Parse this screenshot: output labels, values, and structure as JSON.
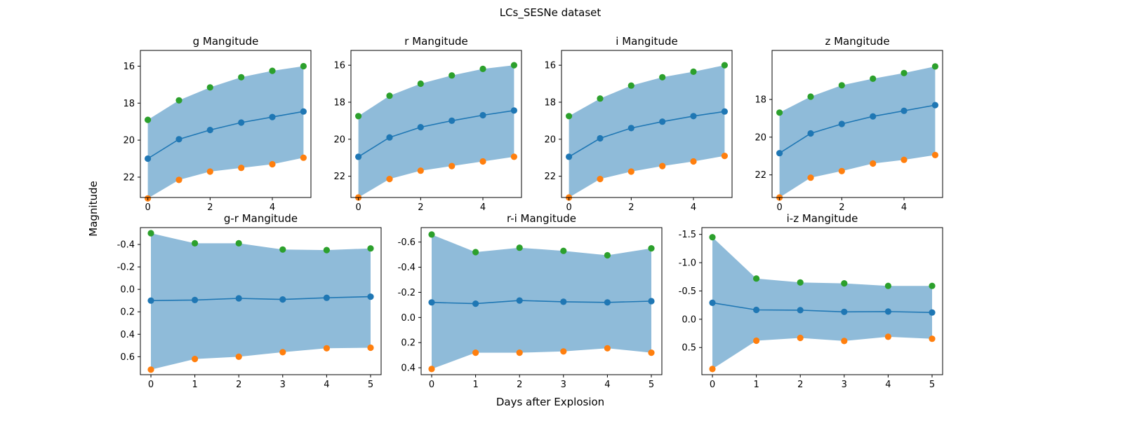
{
  "figure": {
    "title": "LCs_SESNe dataset",
    "xlabel": "Days after Explosion",
    "ylabel": "Magnitude"
  },
  "colors": {
    "band": "#1f77b4",
    "band_opacity": 0.5,
    "median": "#1f77b4",
    "upper": "#2ca02c",
    "lower": "#ff7f0e"
  },
  "chart_data": [
    {
      "type": "line",
      "title": "g Mangitude",
      "x": [
        0,
        1,
        2,
        3,
        4,
        5
      ],
      "xticks": [
        "0",
        "2",
        "4"
      ],
      "yticks": [
        "16",
        "18",
        "20",
        "22"
      ],
      "inverted_y": true,
      "ylim": [
        23.1,
        15.15
      ],
      "series": [
        {
          "values": [
            21.0,
            19.95,
            19.45,
            19.05,
            18.75,
            18.45
          ]
        },
        {
          "values": [
            23.15,
            22.15,
            21.7,
            21.5,
            21.3,
            20.95
          ]
        },
        {
          "values": [
            18.9,
            17.85,
            17.15,
            16.6,
            16.25,
            16.0
          ]
        }
      ]
    },
    {
      "type": "line",
      "title": "r Mangitude",
      "x": [
        0,
        1,
        2,
        3,
        4,
        5
      ],
      "xticks": [
        "0",
        "2",
        "4"
      ],
      "yticks": [
        "16",
        "18",
        "20",
        "22"
      ],
      "inverted_y": true,
      "ylim": [
        23.15,
        15.2
      ],
      "series": [
        {
          "values": [
            20.95,
            19.9,
            19.35,
            19.0,
            18.7,
            18.45
          ]
        },
        {
          "values": [
            23.15,
            22.15,
            21.7,
            21.45,
            21.2,
            20.95
          ]
        },
        {
          "values": [
            18.75,
            17.65,
            17.0,
            16.55,
            16.2,
            16.0
          ]
        }
      ]
    },
    {
      "type": "line",
      "title": "i Mangitude",
      "x": [
        0,
        1,
        2,
        3,
        4,
        5
      ],
      "xticks": [
        "0",
        "2",
        "4"
      ],
      "yticks": [
        "16",
        "18",
        "20",
        "22"
      ],
      "inverted_y": true,
      "ylim": [
        23.15,
        15.2
      ],
      "series": [
        {
          "values": [
            20.95,
            19.95,
            19.4,
            19.05,
            18.75,
            18.5
          ]
        },
        {
          "values": [
            23.15,
            22.15,
            21.75,
            21.45,
            21.2,
            20.9
          ]
        },
        {
          "values": [
            18.75,
            17.8,
            17.1,
            16.65,
            16.35,
            16.0
          ]
        }
      ]
    },
    {
      "type": "line",
      "title": "z Mangitude",
      "x": [
        0,
        1,
        2,
        3,
        4,
        5
      ],
      "xticks": [
        "0",
        "2",
        "4"
      ],
      "yticks": [
        "18",
        "20",
        "22"
      ],
      "inverted_y": true,
      "ylim": [
        23.2,
        15.4
      ],
      "series": [
        {
          "values": [
            20.85,
            19.8,
            19.3,
            18.9,
            18.6,
            18.3
          ]
        },
        {
          "values": [
            23.2,
            22.15,
            21.8,
            21.4,
            21.2,
            20.95
          ]
        },
        {
          "values": [
            18.7,
            17.85,
            17.25,
            16.9,
            16.6,
            16.25
          ]
        }
      ]
    },
    {
      "type": "line",
      "title": "g-r Mangitude",
      "x": [
        0,
        1,
        2,
        3,
        4,
        5
      ],
      "xticks": [
        "0",
        "1",
        "2",
        "3",
        "4",
        "5"
      ],
      "yticks": [
        "-0.4",
        "-0.2",
        "0.0",
        "0.2",
        "0.4",
        "0.6"
      ],
      "inverted_y": true,
      "ylim": [
        0.76,
        -0.55
      ],
      "series": [
        {
          "values": [
            0.1,
            0.095,
            0.08,
            0.09,
            0.075,
            0.065
          ]
        },
        {
          "values": [
            0.715,
            0.62,
            0.6,
            0.56,
            0.525,
            0.52
          ]
        },
        {
          "values": [
            -0.5,
            -0.41,
            -0.41,
            -0.355,
            -0.35,
            -0.365
          ]
        }
      ]
    },
    {
      "type": "line",
      "title": "r-i Mangitude",
      "x": [
        0,
        1,
        2,
        3,
        4,
        5
      ],
      "xticks": [
        "0",
        "1",
        "2",
        "3",
        "4",
        "5"
      ],
      "yticks": [
        "-0.6",
        "-0.4",
        "-0.2",
        "0.0",
        "0.2",
        "0.4"
      ],
      "inverted_y": true,
      "ylim": [
        0.455,
        -0.715
      ],
      "series": [
        {
          "values": [
            -0.12,
            -0.11,
            -0.135,
            -0.125,
            -0.12,
            -0.13
          ]
        },
        {
          "values": [
            0.41,
            0.28,
            0.28,
            0.27,
            0.245,
            0.28
          ]
        },
        {
          "values": [
            -0.66,
            -0.52,
            -0.555,
            -0.53,
            -0.495,
            -0.55
          ]
        }
      ]
    },
    {
      "type": "line",
      "title": "i-z Mangitude",
      "x": [
        0,
        1,
        2,
        3,
        4,
        5
      ],
      "xticks": [
        "0",
        "1",
        "2",
        "3",
        "4",
        "5"
      ],
      "yticks": [
        "-1.5",
        "-1.0",
        "-0.5",
        "0.0",
        "0.5"
      ],
      "inverted_y": true,
      "ylim": [
        0.98,
        -1.62
      ],
      "series": [
        {
          "values": [
            -0.29,
            -0.165,
            -0.16,
            -0.13,
            -0.135,
            -0.12
          ]
        },
        {
          "values": [
            0.88,
            0.38,
            0.33,
            0.385,
            0.31,
            0.345
          ]
        },
        {
          "values": [
            -1.45,
            -0.72,
            -0.65,
            -0.635,
            -0.59,
            -0.59
          ]
        }
      ]
    }
  ]
}
